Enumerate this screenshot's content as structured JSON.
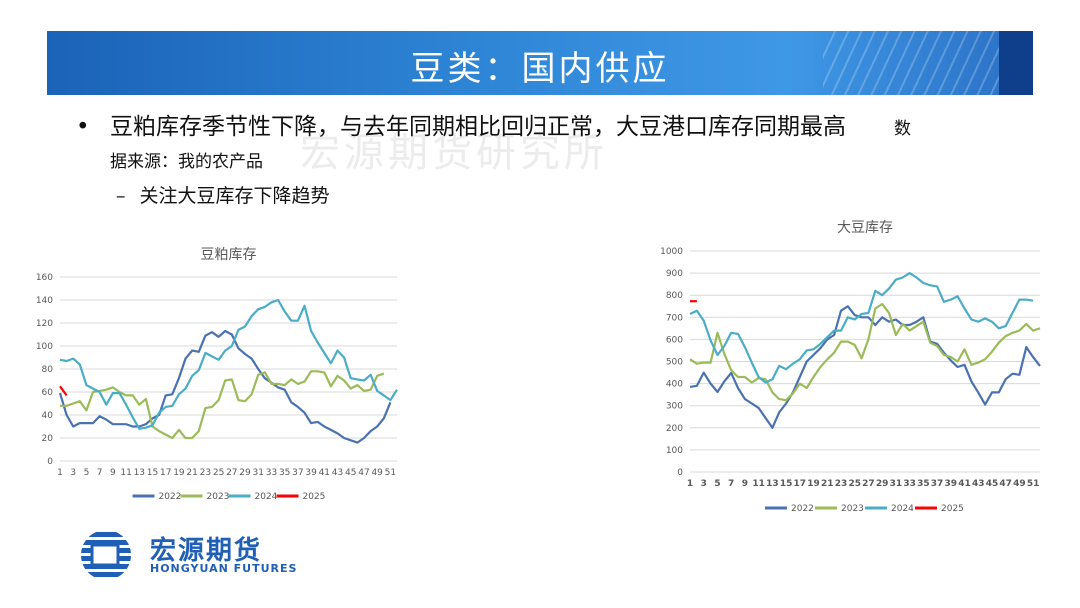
{
  "header": {
    "title": "豆类：国内供应"
  },
  "watermark": "宏源期货研究所",
  "bullets": {
    "main": "豆粕库存季节性下降，与去年同期相比回归正常，大豆港口库存同期最高",
    "source": "数据来源：我的农产品",
    "sub_dash": "–",
    "sub": "关注大豆库存下降趋势"
  },
  "logo": {
    "cn": "宏源期货",
    "en": "HONGYUAN FUTURES"
  },
  "colors": {
    "s2022": "#4a72b0",
    "s2023": "#9bbb59",
    "s2024": "#4bacc6",
    "s2025": "#ff0000"
  },
  "chart_data": [
    {
      "type": "line",
      "title": "豆粕库存",
      "x_ticks": [
        "1",
        "3",
        "5",
        "7",
        "9",
        "11",
        "13",
        "15",
        "17",
        "19",
        "21",
        "23",
        "25",
        "27",
        "29",
        "31",
        "33",
        "35",
        "37",
        "39",
        "41",
        "43",
        "45",
        "47",
        "49",
        "51"
      ],
      "y_ticks": [
        "0",
        "20",
        "40",
        "60",
        "80",
        "100",
        "120",
        "140",
        "160"
      ],
      "ylim": [
        0,
        160
      ],
      "xlim": [
        1,
        52
      ],
      "series": [
        {
          "name": "2022",
          "values": [
            59,
            40,
            30,
            33,
            33,
            33,
            39,
            36,
            32,
            32,
            32,
            30,
            30,
            32,
            37,
            40,
            57,
            58,
            72,
            89,
            96,
            95,
            109,
            112,
            108,
            113,
            110,
            98,
            93,
            89,
            80,
            72,
            68,
            64,
            62,
            51,
            47,
            42,
            33,
            34,
            30,
            27,
            24,
            20,
            18,
            16,
            20,
            26,
            30,
            37,
            51
          ]
        },
        {
          "name": "2023",
          "values": [
            48,
            48,
            50,
            52,
            44,
            60,
            61,
            62,
            64,
            60,
            57,
            57,
            49,
            54,
            30,
            26,
            23,
            20,
            27,
            20,
            20,
            26,
            46,
            47,
            53,
            70,
            71,
            53,
            52,
            58,
            75,
            77,
            67,
            67,
            66,
            71,
            67,
            69,
            78,
            78,
            77,
            65,
            74,
            70,
            63,
            66,
            61,
            62,
            74,
            76
          ]
        },
        {
          "name": "2024",
          "values": [
            88,
            87,
            89,
            84,
            66,
            63,
            60,
            49,
            59,
            59,
            49,
            38,
            28,
            29,
            31,
            42,
            47,
            48,
            58,
            63,
            74,
            79,
            94,
            91,
            88,
            96,
            100,
            114,
            117,
            126,
            132,
            134,
            138,
            140,
            130,
            122,
            122,
            135,
            113,
            103,
            94,
            85,
            96,
            90,
            72,
            71,
            70,
            75,
            61,
            57,
            53,
            62
          ]
        },
        {
          "name": "2025",
          "values": [
            65,
            57
          ]
        }
      ]
    },
    {
      "type": "line",
      "title": "大豆库存",
      "x_ticks": [
        "1",
        "3",
        "5",
        "7",
        "9",
        "11",
        "13",
        "15",
        "17",
        "19",
        "21",
        "23",
        "25",
        "27",
        "29",
        "31",
        "33",
        "35",
        "37",
        "39",
        "41",
        "43",
        "45",
        "47",
        "49",
        "51"
      ],
      "y_ticks": [
        "0",
        "100",
        "200",
        "300",
        "400",
        "500",
        "600",
        "700",
        "800",
        "900",
        "1000"
      ],
      "ylim": [
        0,
        1000
      ],
      "xlim": [
        1,
        52
      ],
      "series": [
        {
          "name": "2022",
          "values": [
            385,
            390,
            450,
            400,
            362,
            410,
            448,
            380,
            330,
            310,
            290,
            245,
            200,
            270,
            310,
            360,
            430,
            500,
            530,
            560,
            600,
            620,
            730,
            750,
            710,
            700,
            700,
            665,
            700,
            680,
            690,
            665,
            665,
            680,
            700,
            590,
            580,
            540,
            505,
            475,
            485,
            410,
            360,
            305,
            360,
            360,
            420,
            445,
            440,
            565,
            520,
            480
          ]
        },
        {
          "name": "2023",
          "values": [
            510,
            490,
            495,
            495,
            630,
            535,
            460,
            430,
            430,
            405,
            425,
            420,
            360,
            330,
            325,
            355,
            400,
            380,
            430,
            475,
            510,
            540,
            590,
            590,
            575,
            515,
            600,
            740,
            760,
            720,
            620,
            670,
            640,
            660,
            680,
            585,
            570,
            530,
            520,
            500,
            555,
            485,
            495,
            510,
            545,
            585,
            615,
            630,
            640,
            670,
            640,
            650
          ]
        },
        {
          "name": "2024",
          "values": [
            715,
            730,
            685,
            595,
            530,
            570,
            630,
            625,
            565,
            495,
            430,
            405,
            420,
            480,
            465,
            490,
            510,
            550,
            555,
            580,
            610,
            640,
            640,
            700,
            690,
            715,
            720,
            820,
            800,
            830,
            870,
            880,
            900,
            880,
            855,
            845,
            840,
            770,
            780,
            795,
            740,
            690,
            680,
            695,
            680,
            650,
            660,
            720,
            780,
            780,
            775
          ]
        },
        {
          "name": "2025",
          "values": [
            773,
            773
          ]
        }
      ]
    }
  ]
}
